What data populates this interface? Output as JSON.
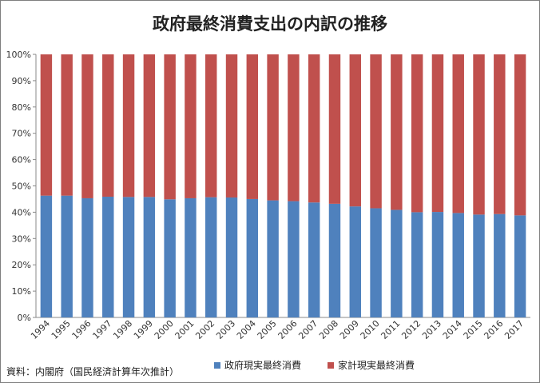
{
  "source_note": "資料：内閣府（国民経済計算年次推計）",
  "chart_data": {
    "type": "bar",
    "stacked": true,
    "title": "政府最終消費支出の内訳の推移",
    "categories": [
      "1994",
      "1995",
      "1996",
      "1997",
      "1998",
      "1999",
      "2000",
      "2001",
      "2002",
      "2003",
      "2004",
      "2005",
      "2006",
      "2007",
      "2008",
      "2009",
      "2010",
      "2011",
      "2012",
      "2013",
      "2014",
      "2015",
      "2016",
      "2017"
    ],
    "series": [
      {
        "name": "政府現実最終消費",
        "color": "#4f81bd",
        "values": [
          46.3,
          46.3,
          45.3,
          45.9,
          45.8,
          45.8,
          44.9,
          45.3,
          45.7,
          45.6,
          45.0,
          44.5,
          44.2,
          43.7,
          43.2,
          42.2,
          41.5,
          40.9,
          40.0,
          40.1,
          39.7,
          39.1,
          39.3,
          38.8
        ]
      },
      {
        "name": "家計現実最終消費",
        "color": "#c0504d",
        "values": [
          53.7,
          53.7,
          54.7,
          54.1,
          54.2,
          54.2,
          55.1,
          54.7,
          54.3,
          54.4,
          55.0,
          55.5,
          55.8,
          56.3,
          56.8,
          57.8,
          58.5,
          59.1,
          60.0,
          59.9,
          60.3,
          60.9,
          60.7,
          61.2
        ]
      }
    ],
    "yticks": [
      "0%",
      "10%",
      "20%",
      "30%",
      "40%",
      "50%",
      "60%",
      "70%",
      "80%",
      "90%",
      "100%"
    ],
    "ylim": [
      0,
      100
    ],
    "grid": false,
    "legend_position": "bottom"
  }
}
